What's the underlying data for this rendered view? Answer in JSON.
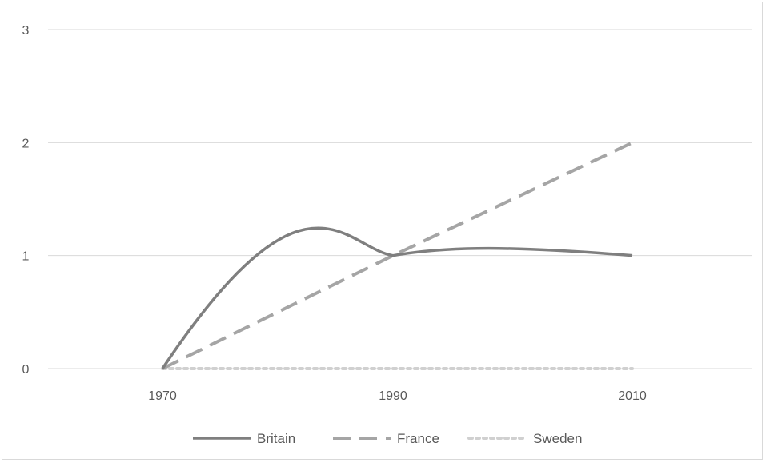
{
  "chart_data": {
    "type": "line",
    "x": [
      1970,
      1990,
      2010
    ],
    "x_ticks": [
      "1970",
      "1990",
      "2010"
    ],
    "y_ticks": [
      "0",
      "1",
      "2",
      "3"
    ],
    "ylim": [
      0,
      3
    ],
    "grid": "horizontal",
    "legend_position": "bottom",
    "series": [
      {
        "name": "Britain",
        "values": [
          0,
          1,
          1
        ],
        "color": "#7f7f7f",
        "style": "solid",
        "smooth": true
      },
      {
        "name": "France",
        "values": [
          0,
          1,
          2
        ],
        "color": "#a5a5a5",
        "style": "dashed",
        "smooth": false
      },
      {
        "name": "Sweden",
        "values": [
          0,
          0,
          0
        ],
        "color": "#d0d0d0",
        "style": "dotted",
        "smooth": false
      }
    ]
  }
}
